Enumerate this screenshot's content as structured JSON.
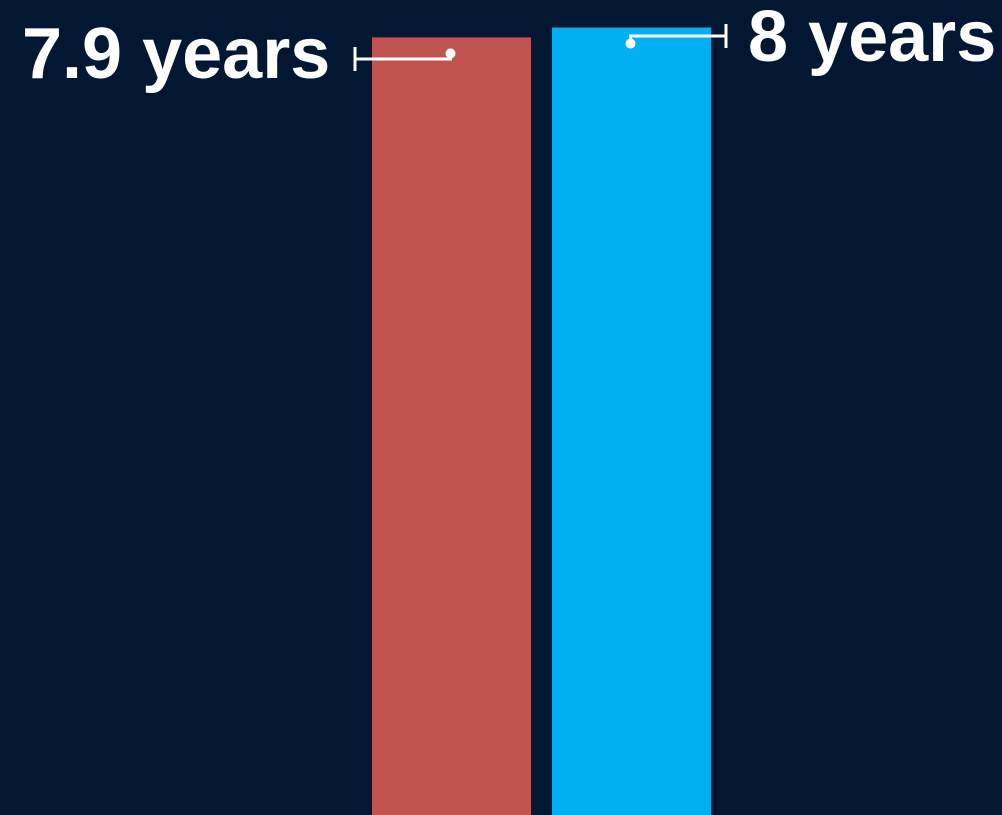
{
  "chart_data": {
    "type": "bar",
    "categories": [
      "",
      ""
    ],
    "values": [
      7.9,
      8
    ],
    "data_labels": [
      "7.9 years",
      "8 years"
    ],
    "colors": [
      "#c0524f",
      "#00b0f0"
    ],
    "background": "#031733",
    "leader_color": "#ffffff",
    "title": "",
    "xlabel": "",
    "ylabel": "",
    "ylim": [
      0,
      8.28
    ],
    "grid": false,
    "legend": "none"
  }
}
